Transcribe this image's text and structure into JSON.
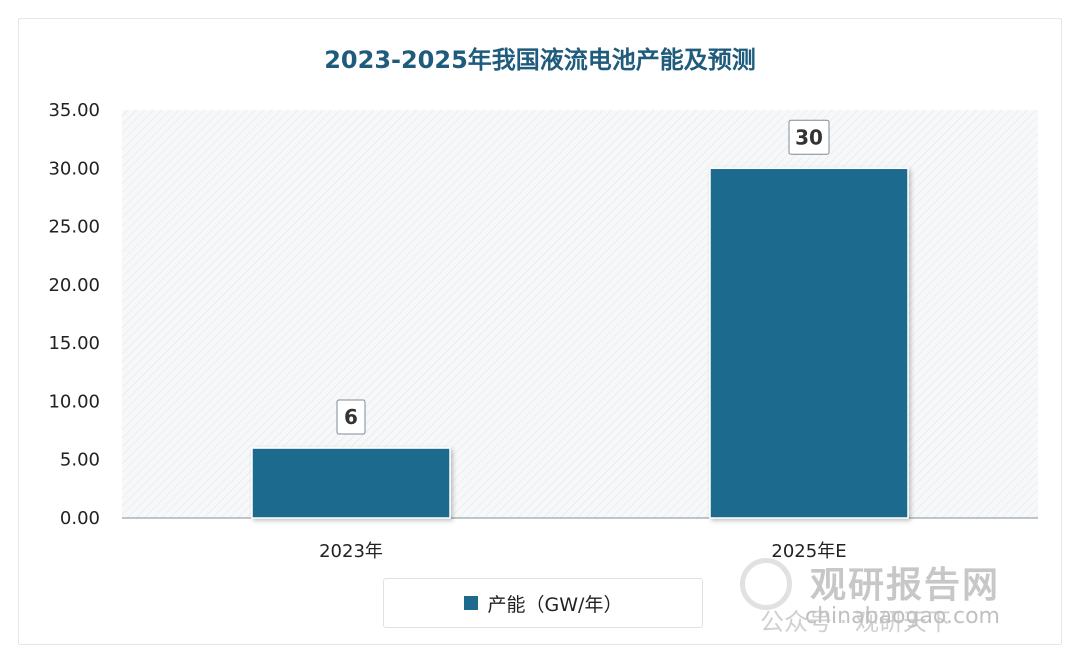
{
  "chart_data": {
    "type": "bar",
    "title": "2023-2025年我国液流电池产能及预测",
    "categories": [
      "2023年",
      "2025年E"
    ],
    "series": [
      {
        "name": "产能（GW/年）",
        "values": [
          6,
          30
        ]
      }
    ],
    "data_labels": [
      "6",
      "30"
    ],
    "ylim": [
      0,
      35
    ],
    "yticks": [
      "0.00",
      "5.00",
      "10.00",
      "15.00",
      "20.00",
      "25.00",
      "30.00",
      "35.00"
    ],
    "bar_color": "#1d6a8e",
    "legend_position": "bottom",
    "grid": false
  },
  "watermark": {
    "brand": "观研报告网",
    "overlay": "公众号 · 观研天下",
    "site": "chinabaogao.com"
  }
}
